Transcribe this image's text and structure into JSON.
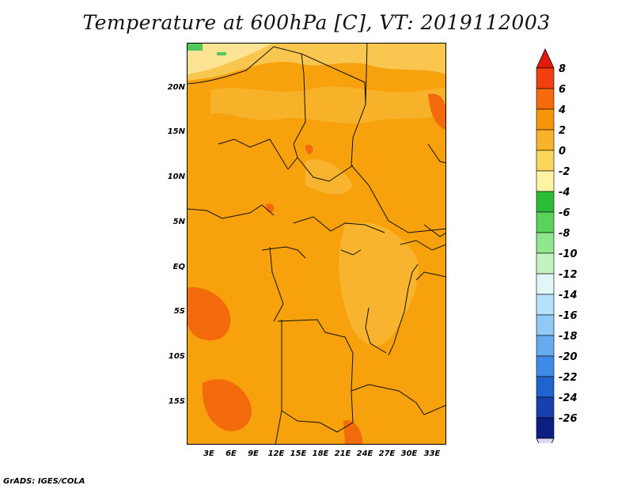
{
  "title": "Temperature at 600hPa [C], VT: 2019112003",
  "credit": "GrADS: IGES/COLA",
  "map": {
    "variable": "Temperature",
    "level": "600hPa",
    "units": "C",
    "valid_time": "2019112003",
    "lat_labels": [
      "20N",
      "15N",
      "10N",
      "5N",
      "EQ",
      "5S",
      "10S",
      "15S"
    ],
    "lon_labels": [
      "3E",
      "6E",
      "9E",
      "12E",
      "15E",
      "18E",
      "21E",
      "24E",
      "27E",
      "30E",
      "33E"
    ]
  },
  "colorbar": {
    "labels": [
      "8",
      "6",
      "4",
      "2",
      "0",
      "-2",
      "-4",
      "-6",
      "-8",
      "-10",
      "-12",
      "-14",
      "-16",
      "-18",
      "-20",
      "-22",
      "-24",
      "-26"
    ],
    "colors": [
      "#e11a0c",
      "#f04010",
      "#f56a0a",
      "#f7950b",
      "#f9b32b",
      "#fcd65b",
      "#fff4a6",
      "#2bbd38",
      "#59d35b",
      "#8ee68d",
      "#c3f2c0",
      "#e1f7f7",
      "#b5e1fa",
      "#8fc9f6",
      "#66abef",
      "#3f8ae6",
      "#1f63cf",
      "#1641ad",
      "#0d1e82",
      "#d8d8f4"
    ]
  }
}
